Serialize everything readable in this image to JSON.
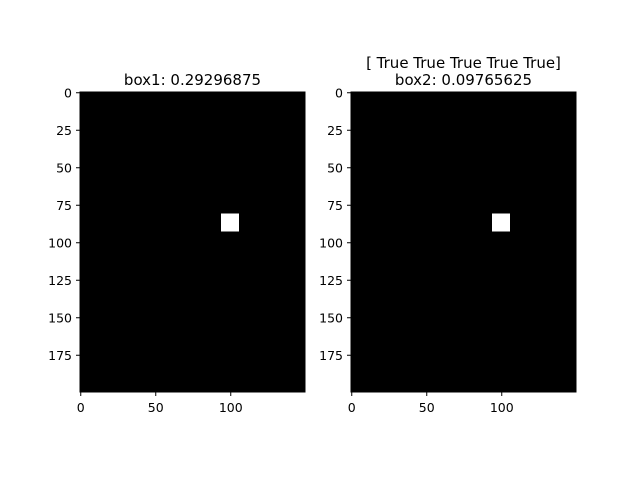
{
  "chart_data": [
    {
      "type": "heatmap",
      "title_lines": [
        "box1: 0.29296875"
      ],
      "xlim": [
        0,
        150
      ],
      "ylim": [
        200,
        0
      ],
      "xticks": [
        0,
        50,
        100
      ],
      "yticks": [
        0,
        25,
        50,
        75,
        100,
        125,
        150,
        175
      ],
      "background_value": 0,
      "rects": [
        {
          "x0": 94,
          "x1": 106,
          "y0": 81,
          "y1": 93,
          "value": 1
        }
      ],
      "colormap": {
        "0": "#000000",
        "1": "#ffffff"
      }
    },
    {
      "type": "heatmap",
      "title_lines": [
        "[ True  True  True  True  True]",
        "box2: 0.09765625"
      ],
      "xlim": [
        0,
        150
      ],
      "ylim": [
        200,
        0
      ],
      "xticks": [
        0,
        50,
        100
      ],
      "yticks": [
        0,
        25,
        50,
        75,
        100,
        125,
        150,
        175
      ],
      "background_value": 0,
      "rects": [
        {
          "x0": 94,
          "x1": 106,
          "y0": 81,
          "y1": 93,
          "value": 1
        }
      ],
      "colormap": {
        "0": "#000000",
        "1": "#ffffff"
      }
    }
  ]
}
